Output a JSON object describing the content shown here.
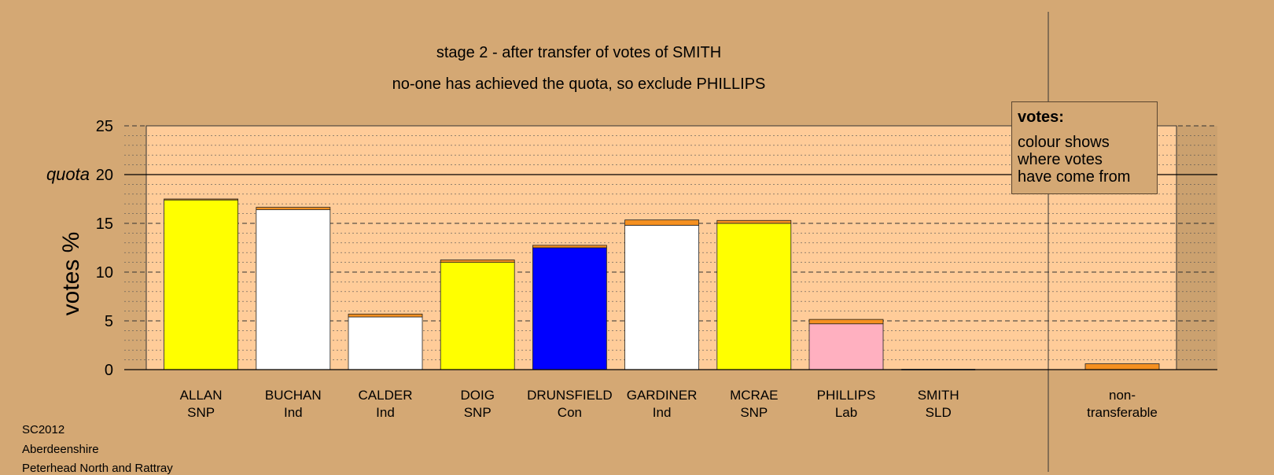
{
  "chart_data": {
    "type": "bar",
    "title": "stage 2 - after transfer of votes of SMITH",
    "subtitle": "no-one has achieved the quota, so exclude PHILLIPS",
    "ylabel": "votes %",
    "ylim": [
      0,
      25
    ],
    "yticks": [
      0,
      5,
      10,
      15,
      20,
      25
    ],
    "quota": 20,
    "quota_label": "quota",
    "categories": [
      {
        "name": "ALLAN",
        "party": "SNP",
        "base": 17.4,
        "base_color": "#FFFF00",
        "transfer": 0.1
      },
      {
        "name": "BUCHAN",
        "party": "Ind",
        "base": 16.4,
        "base_color": "#FFFFFF",
        "transfer": 0.25
      },
      {
        "name": "CALDER",
        "party": "Ind",
        "base": 5.4,
        "base_color": "#FFFFFF",
        "transfer": 0.3
      },
      {
        "name": "DOIG",
        "party": "SNP",
        "base": 11.0,
        "base_color": "#FFFF00",
        "transfer": 0.25
      },
      {
        "name": "DRUNSFIELD",
        "party": "Con",
        "base": 12.5,
        "base_color": "#0000FF",
        "transfer": 0.25
      },
      {
        "name": "GARDINER",
        "party": "Ind",
        "base": 14.8,
        "base_color": "#FFFFFF",
        "transfer": 0.55
      },
      {
        "name": "MCRAE",
        "party": "SNP",
        "base": 15.0,
        "base_color": "#FFFF00",
        "transfer": 0.3
      },
      {
        "name": "PHILLIPS",
        "party": "Lab",
        "base": 4.7,
        "base_color": "#FFB0C0",
        "transfer": 0.45
      },
      {
        "name": "SMITH",
        "party": "SLD",
        "base": 0,
        "base_color": "#FFFFFF",
        "transfer": 0
      }
    ],
    "nontransferable": {
      "label_line1": "non-",
      "label_line2": "transferable",
      "value": 0.6
    },
    "transfer_color": "#F59020",
    "plot_background": "#FFCC99",
    "page_background": "#D4A874",
    "grid": true
  },
  "legend": {
    "title": "votes:",
    "text": "colour shows\nwhere votes\nhave come from"
  },
  "footer": {
    "line1": "SC2012",
    "line2": "Aberdeenshire",
    "line3": "Peterhead North and Rattray"
  }
}
